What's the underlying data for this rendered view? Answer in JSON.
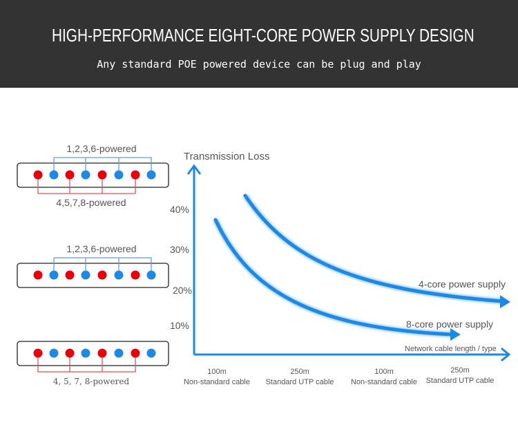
{
  "header": {
    "title": "HIGH-PERFORMANCE EIGHT-CORE POWER SUPPLY DESIGN",
    "subtitle": "Any standard POE powered device can be plug and play"
  },
  "connectors": [
    {
      "top_label": "1,2,3,6-powered",
      "bottom_label": "4,5,7,8-powered"
    },
    {
      "top_label": "1,2,3,6-powered"
    },
    {
      "bottom_label": "4, 5, 7, 8-powered"
    }
  ],
  "colors": {
    "red": "#e8000b",
    "blue": "#1e88e5",
    "header": "#333333"
  },
  "chart": {
    "y_title": "Transmission Loss",
    "y_ticks": [
      "40%",
      "30%",
      "20%",
      "10%"
    ],
    "x_title": "Network cable length / type",
    "x_ticks": [
      {
        "length": "100m",
        "type": "Non-standard  cable"
      },
      {
        "length": "250m",
        "type": "Standard UTP cable"
      },
      {
        "length": "100m",
        "type": "Non-standard cable"
      },
      {
        "length": "250m",
        "type": "Standard UTP cable"
      }
    ],
    "series": [
      {
        "name": "4-core power supply"
      },
      {
        "name": "8-core power supply"
      }
    ]
  }
}
